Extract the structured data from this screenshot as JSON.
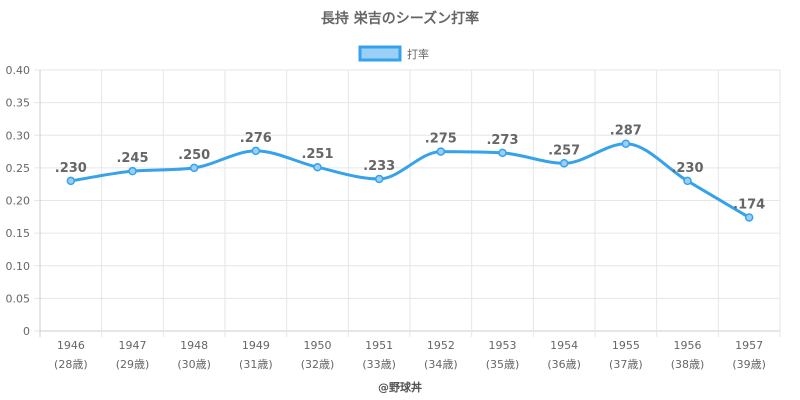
{
  "chart_data": {
    "type": "line",
    "title": "長持 栄吉のシーズン打率",
    "categories": [
      "1946",
      "1947",
      "1948",
      "1949",
      "1950",
      "1951",
      "1952",
      "1953",
      "1954",
      "1955",
      "1956",
      "1957"
    ],
    "sub_categories": [
      "(28歳)",
      "(29歳)",
      "(30歳)",
      "(31歳)",
      "(32歳)",
      "(33歳)",
      "(34歳)",
      "(35歳)",
      "(36歳)",
      "(37歳)",
      "(38歳)",
      "(39歳)"
    ],
    "series": [
      {
        "name": "打率",
        "values": [
          0.23,
          0.245,
          0.25,
          0.276,
          0.251,
          0.233,
          0.275,
          0.273,
          0.257,
          0.287,
          0.23,
          0.174
        ],
        "labels": [
          ".230",
          ".245",
          ".250",
          ".276",
          ".251",
          ".233",
          ".275",
          ".273",
          ".257",
          ".287",
          ".230",
          ".174"
        ],
        "color": "#36a2eb",
        "fill": "#9ad0f5"
      }
    ],
    "ylim": [
      0,
      0.4
    ],
    "yticks": [
      "0",
      "0.05",
      "0.10",
      "0.15",
      "0.20",
      "0.25",
      "0.30",
      "0.35",
      "0.40"
    ],
    "grid": true,
    "legend_position": "top-center",
    "xlabel": "",
    "ylabel": ""
  },
  "credit": "@野球丼"
}
